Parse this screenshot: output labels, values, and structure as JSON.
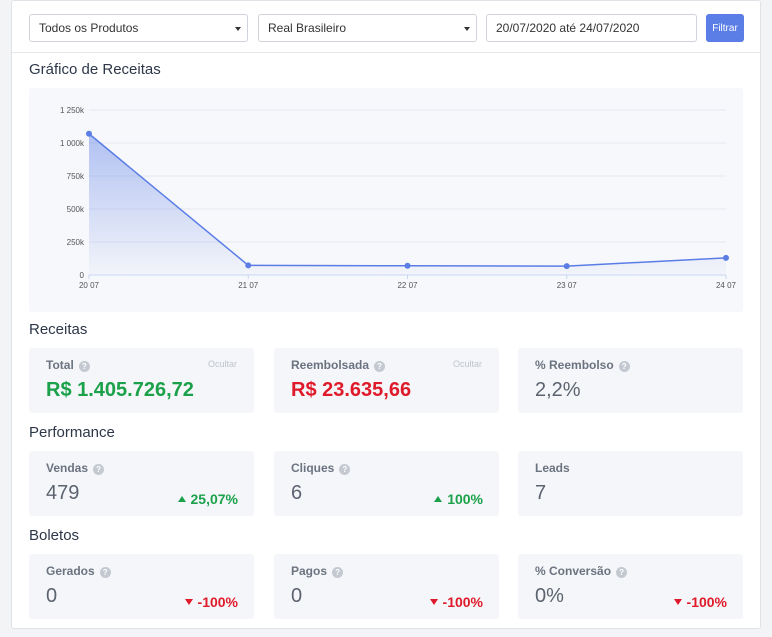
{
  "filters": {
    "product": "Todos os Produtos",
    "currency": "Real Brasileiro",
    "date_range": "20/07/2020 até 24/07/2020",
    "filter_button": "Filtrar"
  },
  "chart_section_title": "Gráfico de Receitas",
  "chart_data": {
    "type": "area",
    "title": "",
    "xlabel": "",
    "ylabel": "",
    "categories": [
      "20 07",
      "21 07",
      "22 07",
      "23 07",
      "24 07"
    ],
    "values": [
      1070000,
      73000,
      70000,
      67000,
      130000
    ],
    "ylim": [
      0,
      1250000
    ],
    "yticks": [
      0,
      250000,
      500000,
      750000,
      1000000,
      1250000
    ],
    "ytick_labels": [
      "0",
      "250k",
      "500k",
      "750k",
      "1 000k",
      "1 250k"
    ],
    "grid": true,
    "legend": "none",
    "line_color": "#5a7de6"
  },
  "receitas": {
    "title": "Receitas",
    "total": {
      "label": "Total",
      "hide": "Ocultar",
      "value": "R$ 1.405.726,72"
    },
    "reembolsada": {
      "label": "Reembolsada",
      "hide": "Ocultar",
      "value": "R$ 23.635,66"
    },
    "pct_reembolso": {
      "label": "% Reembolso",
      "value": "2,2%"
    }
  },
  "performance": {
    "title": "Performance",
    "vendas": {
      "label": "Vendas",
      "value": "479",
      "delta": "25,07%"
    },
    "cliques": {
      "label": "Cliques",
      "value": "6",
      "delta": "100%"
    },
    "leads": {
      "label": "Leads",
      "value": "7"
    }
  },
  "boletos": {
    "title": "Boletos",
    "gerados": {
      "label": "Gerados",
      "value": "0",
      "delta": "-100%"
    },
    "pagos": {
      "label": "Pagos",
      "value": "0",
      "delta": "-100%"
    },
    "conversao": {
      "label": "% Conversão",
      "value": "0%",
      "delta": "-100%"
    }
  },
  "colors": {
    "accent": "#5a7de6",
    "positive": "#1aa14a",
    "negative": "#df1a2a"
  }
}
